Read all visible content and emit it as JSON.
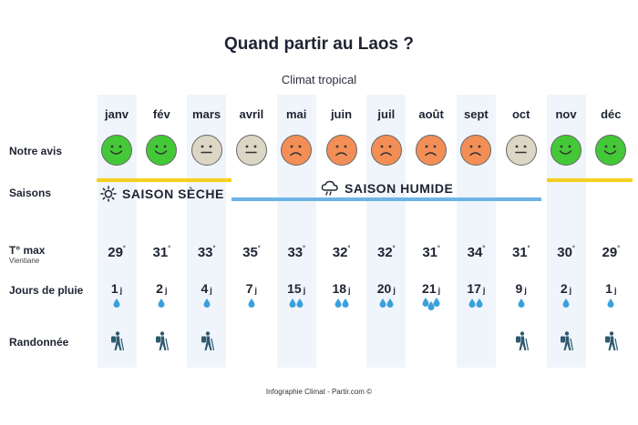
{
  "title": "Quand partir au Laos ?",
  "subtitle": "Climat tropical",
  "labels": {
    "avis": "Notre avis",
    "saisons": "Saisons",
    "tmax": "T° max",
    "tmax_sub": "Vientiane",
    "pluie": "Jours de pluie",
    "rando": "Randonnée"
  },
  "seasons": {
    "dry": "SAISON SÈCHE",
    "wet": "SAISON HUMIDE",
    "dry_color": "#f5cf1f",
    "wet_color": "#6db3e6"
  },
  "colors": {
    "good": "#44c837",
    "neutral": "#dcd7c4",
    "bad": "#f28e56",
    "drop": "#3aa0dc",
    "hiker": "#2f5a70",
    "column_bg": "#f0f5fb"
  },
  "unit_day": "j",
  "degree": "°",
  "months": [
    {
      "name": "janv",
      "rating": "good",
      "temp": "29",
      "rain": "1",
      "drops": 1,
      "hike": true
    },
    {
      "name": "fév",
      "rating": "good",
      "temp": "31",
      "rain": "2",
      "drops": 1,
      "hike": true
    },
    {
      "name": "mars",
      "rating": "neutral",
      "temp": "33",
      "rain": "4",
      "drops": 1,
      "hike": true
    },
    {
      "name": "avril",
      "rating": "neutral",
      "temp": "35",
      "rain": "7",
      "drops": 1,
      "hike": false
    },
    {
      "name": "mai",
      "rating": "bad",
      "temp": "33",
      "rain": "15",
      "drops": 2,
      "hike": false
    },
    {
      "name": "juin",
      "rating": "bad",
      "temp": "32",
      "rain": "18",
      "drops": 2,
      "hike": false
    },
    {
      "name": "juil",
      "rating": "bad",
      "temp": "32",
      "rain": "20",
      "drops": 2,
      "hike": false
    },
    {
      "name": "août",
      "rating": "bad",
      "temp": "31",
      "rain": "21",
      "drops": 3,
      "hike": false
    },
    {
      "name": "sept",
      "rating": "bad",
      "temp": "34",
      "rain": "17",
      "drops": 2,
      "hike": false
    },
    {
      "name": "oct",
      "rating": "neutral",
      "temp": "31",
      "rain": "9",
      "drops": 1,
      "hike": true
    },
    {
      "name": "nov",
      "rating": "good",
      "temp": "30",
      "rain": "2",
      "drops": 1,
      "hike": true
    },
    {
      "name": "déc",
      "rating": "good",
      "temp": "29",
      "rain": "1",
      "drops": 1,
      "hike": true
    }
  ],
  "footer": "Infographie Climat - Partir.com ©"
}
